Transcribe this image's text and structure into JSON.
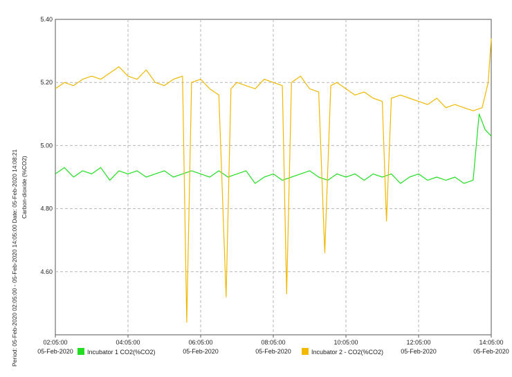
{
  "chart_data": {
    "type": "line",
    "title": "",
    "side_label": "Period: 05-Feb-2020 02:05:00 - 05-Feb-2020 14:05:00   Date: 05-Feb-2020 14:08:21",
    "ylabel": "Carbon-dioxide (%CO2)",
    "ylim": [
      4.4,
      5.4
    ],
    "y_ticks": [
      {
        "v": 4.6,
        "label": "4.60"
      },
      {
        "v": 4.8,
        "label": "4.80"
      },
      {
        "v": 5.0,
        "label": "5.00"
      },
      {
        "v": 5.2,
        "label": "5.20"
      },
      {
        "v": 5.4,
        "label": "5.40"
      }
    ],
    "x_range": [
      "02:05:00",
      "14:05:00"
    ],
    "x_ticks": [
      {
        "time": "02:05:00",
        "date": "05-Feb-2020"
      },
      {
        "time": "04:05:00",
        "date": ""
      },
      {
        "time": "06:05:00",
        "date": "05-Feb-2020"
      },
      {
        "time": "08:05:00",
        "date": "05-Feb-2020"
      },
      {
        "time": "10:05:00",
        "date": ""
      },
      {
        "time": "12:05:00",
        "date": "05-Feb-2020"
      },
      {
        "time": "14:05:00",
        "date": "05-Feb-2020"
      }
    ],
    "grid": true,
    "legend": [
      {
        "name": "Incubator 1 CO2(%CO2)",
        "color": "#22dd22"
      },
      {
        "name": "Incubator 2 - CO2(%CO2)",
        "color": "#f0b800"
      }
    ],
    "series": [
      {
        "name": "Incubator 1 CO2(%CO2)",
        "color": "#22dd22",
        "points": [
          [
            "02:05:00",
            4.91
          ],
          [
            "02:20:00",
            4.93
          ],
          [
            "02:35:00",
            4.9
          ],
          [
            "02:50:00",
            4.92
          ],
          [
            "03:05:00",
            4.91
          ],
          [
            "03:20:00",
            4.93
          ],
          [
            "03:35:00",
            4.89
          ],
          [
            "03:50:00",
            4.92
          ],
          [
            "04:05:00",
            4.91
          ],
          [
            "04:20:00",
            4.92
          ],
          [
            "04:35:00",
            4.9
          ],
          [
            "04:50:00",
            4.91
          ],
          [
            "05:05:00",
            4.92
          ],
          [
            "05:20:00",
            4.9
          ],
          [
            "05:35:00",
            4.91
          ],
          [
            "05:50:00",
            4.92
          ],
          [
            "06:05:00",
            4.91
          ],
          [
            "06:20:00",
            4.9
          ],
          [
            "06:35:00",
            4.92
          ],
          [
            "06:50:00",
            4.9
          ],
          [
            "07:05:00",
            4.91
          ],
          [
            "07:20:00",
            4.92
          ],
          [
            "07:35:00",
            4.88
          ],
          [
            "07:50:00",
            4.9
          ],
          [
            "08:05:00",
            4.91
          ],
          [
            "08:20:00",
            4.89
          ],
          [
            "08:35:00",
            4.9
          ],
          [
            "08:50:00",
            4.91
          ],
          [
            "09:05:00",
            4.92
          ],
          [
            "09:20:00",
            4.9
          ],
          [
            "09:35:00",
            4.89
          ],
          [
            "09:50:00",
            4.91
          ],
          [
            "10:05:00",
            4.9
          ],
          [
            "10:20:00",
            4.91
          ],
          [
            "10:35:00",
            4.89
          ],
          [
            "10:50:00",
            4.91
          ],
          [
            "11:05:00",
            4.9
          ],
          [
            "11:20:00",
            4.91
          ],
          [
            "11:35:00",
            4.88
          ],
          [
            "11:50:00",
            4.9
          ],
          [
            "12:05:00",
            4.91
          ],
          [
            "12:20:00",
            4.89
          ],
          [
            "12:35:00",
            4.9
          ],
          [
            "12:50:00",
            4.89
          ],
          [
            "13:05:00",
            4.9
          ],
          [
            "13:20:00",
            4.88
          ],
          [
            "13:35:00",
            4.89
          ],
          [
            "13:45:00",
            5.1
          ],
          [
            "13:55:00",
            5.05
          ],
          [
            "14:05:00",
            5.03
          ]
        ]
      },
      {
        "name": "Incubator 2 - CO2(%CO2)",
        "color": "#f0b800",
        "points": [
          [
            "02:05:00",
            5.18
          ],
          [
            "02:20:00",
            5.2
          ],
          [
            "02:35:00",
            5.19
          ],
          [
            "02:50:00",
            5.21
          ],
          [
            "03:05:00",
            5.22
          ],
          [
            "03:20:00",
            5.21
          ],
          [
            "03:35:00",
            5.23
          ],
          [
            "03:50:00",
            5.25
          ],
          [
            "04:05:00",
            5.22
          ],
          [
            "04:20:00",
            5.21
          ],
          [
            "04:35:00",
            5.24
          ],
          [
            "04:50:00",
            5.2
          ],
          [
            "05:05:00",
            5.19
          ],
          [
            "05:20:00",
            5.21
          ],
          [
            "05:35:00",
            5.22
          ],
          [
            "05:42:00",
            4.44
          ],
          [
            "05:50:00",
            5.2
          ],
          [
            "06:05:00",
            5.21
          ],
          [
            "06:20:00",
            5.18
          ],
          [
            "06:35:00",
            5.16
          ],
          [
            "06:47:00",
            4.52
          ],
          [
            "06:55:00",
            5.18
          ],
          [
            "07:05:00",
            5.2
          ],
          [
            "07:20:00",
            5.19
          ],
          [
            "07:35:00",
            5.18
          ],
          [
            "07:50:00",
            5.21
          ],
          [
            "08:05:00",
            5.2
          ],
          [
            "08:20:00",
            5.19
          ],
          [
            "08:27:00",
            4.53
          ],
          [
            "08:35:00",
            5.2
          ],
          [
            "08:50:00",
            5.22
          ],
          [
            "09:05:00",
            5.18
          ],
          [
            "09:20:00",
            5.17
          ],
          [
            "09:30:00",
            4.66
          ],
          [
            "09:40:00",
            5.19
          ],
          [
            "09:50:00",
            5.2
          ],
          [
            "10:05:00",
            5.18
          ],
          [
            "10:20:00",
            5.16
          ],
          [
            "10:35:00",
            5.17
          ],
          [
            "10:50:00",
            5.15
          ],
          [
            "11:05:00",
            5.14
          ],
          [
            "11:12:00",
            4.76
          ],
          [
            "11:20:00",
            5.15
          ],
          [
            "11:35:00",
            5.16
          ],
          [
            "11:50:00",
            5.15
          ],
          [
            "12:05:00",
            5.14
          ],
          [
            "12:20:00",
            5.13
          ],
          [
            "12:35:00",
            5.15
          ],
          [
            "12:50:00",
            5.12
          ],
          [
            "13:05:00",
            5.13
          ],
          [
            "13:20:00",
            5.12
          ],
          [
            "13:35:00",
            5.11
          ],
          [
            "13:50:00",
            5.12
          ],
          [
            "14:00:00",
            5.2
          ],
          [
            "14:05:00",
            5.34
          ]
        ]
      }
    ]
  }
}
